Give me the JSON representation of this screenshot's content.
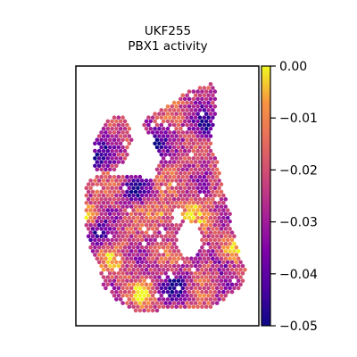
{
  "chart_data": {
    "type": "heatmap",
    "subtype": "spatial-hexbin",
    "title": "UKF255",
    "subtitle": "PBX1 activity",
    "colormap": "plasma",
    "colorbar": {
      "vmin": -0.05,
      "vmax": 0.0,
      "ticks": [
        0.0,
        -0.01,
        -0.02,
        -0.03,
        -0.04,
        -0.05
      ],
      "tick_labels": [
        "0.00",
        "−0.01",
        "−0.02",
        "−0.03",
        "−0.04",
        "−0.05"
      ]
    },
    "axes_ticks_visible": false,
    "grid": false,
    "value_range_observed": [
      -0.05,
      0.0
    ]
  }
}
